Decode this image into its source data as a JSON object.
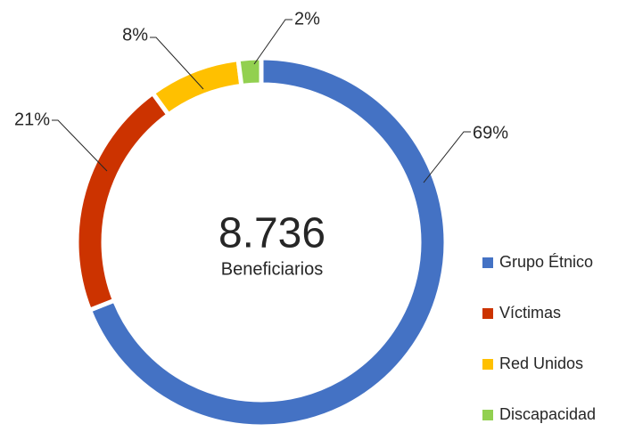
{
  "chart_data": {
    "type": "donut",
    "center_value": "8.736",
    "center_label": "Beneficiarios",
    "categories": [
      "Grupo Étnico",
      "Víctimas",
      "Red Unidos",
      "Discapacidad"
    ],
    "values": [
      69,
      21,
      8,
      2
    ],
    "value_labels": [
      "69%",
      "21%",
      "8%",
      "2%"
    ],
    "colors": [
      "#4472c4",
      "#cc3300",
      "#ffc000",
      "#92d050"
    ],
    "legend": "right"
  }
}
